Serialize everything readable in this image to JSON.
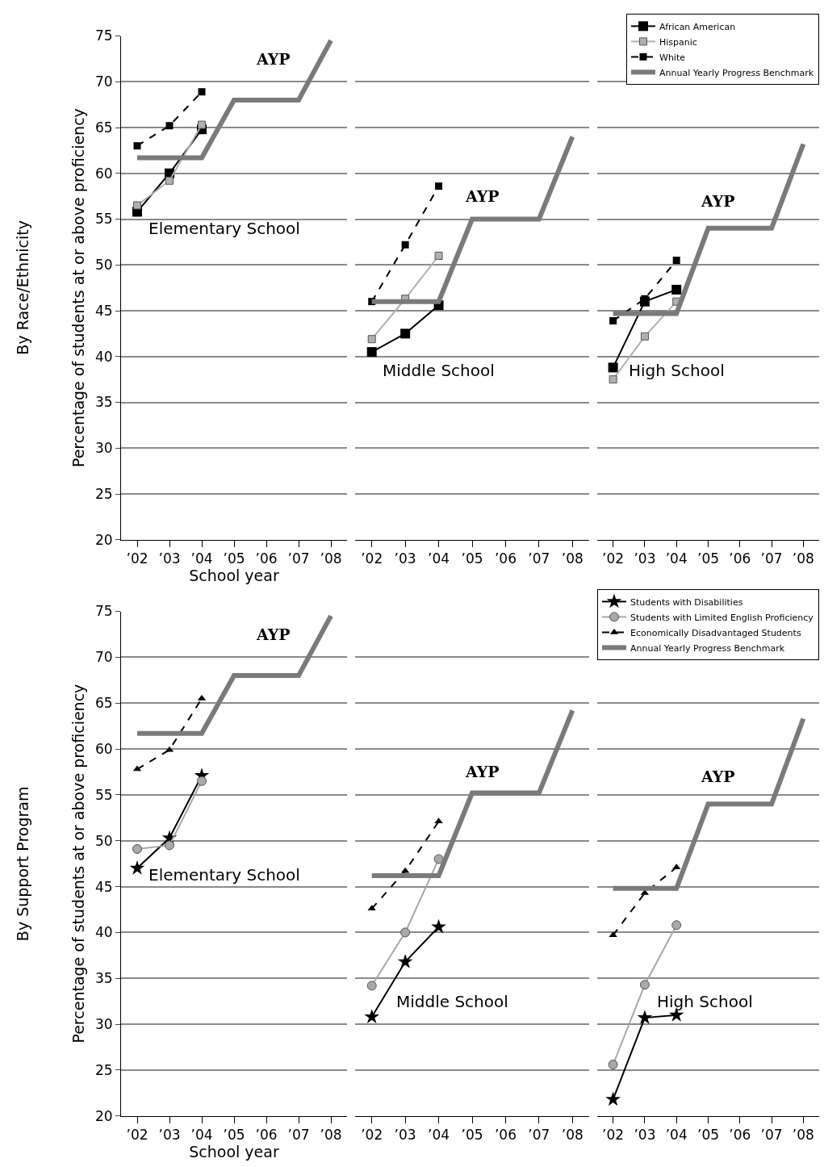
{
  "chart_data": [
    {
      "type": "line",
      "categories": [
        "’02",
        "’03",
        "’04",
        "’05",
        "’06",
        "’07",
        "’08"
      ],
      "xlabel": "School year",
      "ylabel": "Percentage of students at or above proficiency",
      "ylim": [
        20,
        75
      ],
      "yticks": [
        20,
        25,
        30,
        35,
        40,
        45,
        50,
        55,
        60,
        65,
        70,
        75
      ],
      "grid": "y",
      "legend": false,
      "annotations": [
        "By Race/Ethnicity",
        "Elementary School",
        "AYP"
      ],
      "series": [
        {
          "color": "#000000",
          "marker": "square",
          "line_style": "solid",
          "values": [
            55.8,
            60,
            64.8,
            null,
            null,
            null,
            null
          ]
        },
        {
          "color": "#b0b0b0",
          "marker": "square",
          "line_style": "solid",
          "values": [
            56.5,
            59.2,
            65.3,
            null,
            null,
            null,
            null
          ]
        },
        {
          "color": "#000000",
          "marker": "square",
          "line_style": "dashed",
          "values": [
            63,
            65.2,
            68.9,
            null,
            null,
            null,
            null
          ]
        },
        {
          "color": "#7a7a7a",
          "marker": "none",
          "line_style": "solid",
          "values": [
            61.7,
            61.7,
            61.7,
            68,
            68,
            68,
            74.5
          ]
        }
      ]
    },
    {
      "type": "line",
      "categories": [
        "’02",
        "’03",
        "’04",
        "’05",
        "’06",
        "’07",
        "’08"
      ],
      "ylim": [
        20,
        75
      ],
      "yticks": [
        20,
        25,
        30,
        35,
        40,
        45,
        50,
        55,
        60,
        65,
        70,
        75
      ],
      "grid": "y",
      "tick_labels": "x",
      "legend": false,
      "annotations": [
        "Middle School",
        "AYP"
      ],
      "series": [
        {
          "color": "#000000",
          "marker": "square",
          "line_style": "solid",
          "values": [
            40.5,
            42.5,
            45.6,
            null,
            null,
            null,
            null
          ]
        },
        {
          "color": "#b0b0b0",
          "marker": "square",
          "line_style": "solid",
          "values": [
            41.9,
            46.3,
            51,
            null,
            null,
            null,
            null
          ]
        },
        {
          "color": "#000000",
          "marker": "square",
          "line_style": "dashed",
          "values": [
            46,
            52.2,
            58.6,
            null,
            null,
            null,
            null
          ]
        },
        {
          "color": "#7a7a7a",
          "marker": "none",
          "line_style": "solid",
          "values": [
            46,
            46,
            46,
            55,
            55,
            55,
            64
          ]
        }
      ]
    },
    {
      "type": "line",
      "categories": [
        "’02",
        "’03",
        "’04",
        "’05",
        "’06",
        "’07",
        "’08"
      ],
      "ylim": [
        20,
        75
      ],
      "yticks": [
        20,
        25,
        30,
        35,
        40,
        45,
        50,
        55,
        60,
        65,
        70,
        75
      ],
      "grid": "y",
      "tick_labels": "x",
      "legend": "top right",
      "annotations": [
        "High School",
        "AYP"
      ],
      "series": [
        {
          "name": "African American",
          "color": "#000000",
          "marker": "square",
          "line_style": "solid",
          "values": [
            38.8,
            46,
            47.3,
            null,
            null,
            null,
            null
          ]
        },
        {
          "name": "Hispanic",
          "color": "#b0b0b0",
          "marker": "square",
          "line_style": "solid",
          "values": [
            37.5,
            42.2,
            46,
            null,
            null,
            null,
            null
          ]
        },
        {
          "name": "White",
          "color": "#000000",
          "marker": "square",
          "line_style": "dashed",
          "values": [
            43.9,
            46.3,
            50.5,
            null,
            null,
            null,
            null
          ]
        },
        {
          "name": "Annual Yearly Progress Benchmark",
          "color": "#7a7a7a",
          "marker": "none",
          "line_style": "solid",
          "values": [
            44.7,
            44.7,
            44.7,
            54,
            54,
            54,
            63.2
          ]
        }
      ]
    },
    {
      "type": "line",
      "categories": [
        "’02",
        "’03",
        "’04",
        "’05",
        "’06",
        "’07",
        "’08"
      ],
      "xlabel": "School year",
      "ylabel": "Percentage of students at or above proficiency",
      "ylim": [
        20,
        75
      ],
      "yticks": [
        20,
        25,
        30,
        35,
        40,
        45,
        50,
        55,
        60,
        65,
        70,
        75
      ],
      "grid": "y",
      "legend": false,
      "annotations": [
        "By Support Program",
        "Elementary School",
        "AYP"
      ],
      "series": [
        {
          "color": "#000000",
          "marker": "star",
          "line_style": "solid",
          "values": [
            47,
            50.3,
            57.1,
            null,
            null,
            null,
            null
          ]
        },
        {
          "color": "#a8a8a8",
          "marker": "circle",
          "line_style": "solid",
          "values": [
            49.1,
            49.5,
            56.5,
            null,
            null,
            null,
            null
          ]
        },
        {
          "color": "#000000",
          "marker": "triangle",
          "line_style": "dashed",
          "values": [
            57.8,
            59.9,
            65.5,
            null,
            null,
            null,
            null
          ]
        },
        {
          "color": "#7a7a7a",
          "marker": "none",
          "line_style": "solid",
          "values": [
            61.7,
            61.7,
            61.7,
            68,
            68,
            68,
            74.5
          ]
        }
      ]
    },
    {
      "type": "line",
      "categories": [
        "’02",
        "’03",
        "’04",
        "’05",
        "’06",
        "’07",
        "’08"
      ],
      "ylim": [
        20,
        75
      ],
      "yticks": [
        20,
        25,
        30,
        35,
        40,
        45,
        50,
        55,
        60,
        65,
        70,
        75
      ],
      "grid": "y",
      "tick_labels": "x",
      "legend": false,
      "annotations": [
        "Middle School",
        "AYP"
      ],
      "series": [
        {
          "color": "#000000",
          "marker": "star",
          "line_style": "solid",
          "values": [
            30.8,
            36.8,
            40.6,
            null,
            null,
            null,
            null
          ]
        },
        {
          "color": "#a8a8a8",
          "marker": "circle",
          "line_style": "solid",
          "values": [
            34.2,
            40,
            48,
            null,
            null,
            null,
            null
          ]
        },
        {
          "color": "#000000",
          "marker": "triangle",
          "line_style": "dashed",
          "values": [
            42.6,
            46.7,
            52.1,
            null,
            null,
            null,
            null
          ]
        },
        {
          "color": "#7a7a7a",
          "marker": "none",
          "line_style": "solid",
          "values": [
            46.2,
            46.2,
            46.2,
            55.2,
            55.2,
            55.2,
            64.2
          ]
        }
      ]
    },
    {
      "type": "line",
      "categories": [
        "’02",
        "’03",
        "’04",
        "’05",
        "’06",
        "’07",
        "’08"
      ],
      "ylim": [
        20,
        75
      ],
      "yticks": [
        20,
        25,
        30,
        35,
        40,
        45,
        50,
        55,
        60,
        65,
        70,
        75
      ],
      "grid": "y",
      "tick_labels": "x",
      "legend": "top right",
      "annotations": [
        "High School",
        "AYP"
      ],
      "series": [
        {
          "name": "Students with Disabilities",
          "color": "#000000",
          "marker": "star",
          "line_style": "solid",
          "values": [
            21.8,
            30.7,
            31,
            null,
            null,
            null,
            null
          ]
        },
        {
          "name": "Students with Limited English Proficiency",
          "color": "#a8a8a8",
          "marker": "circle",
          "line_style": "solid",
          "values": [
            25.6,
            34.3,
            40.8,
            null,
            null,
            null,
            null
          ]
        },
        {
          "name": "Economically Disadvantaged Students",
          "color": "#000000",
          "marker": "triangle",
          "line_style": "dashed",
          "values": [
            39.7,
            44.3,
            47.1,
            null,
            null,
            null,
            null
          ]
        },
        {
          "name": "Annual Yearly Progress Benchmark",
          "color": "#7a7a7a",
          "marker": "none",
          "line_style": "solid",
          "values": [
            44.8,
            44.8,
            44.8,
            54,
            54,
            54,
            63.3
          ]
        }
      ]
    }
  ]
}
